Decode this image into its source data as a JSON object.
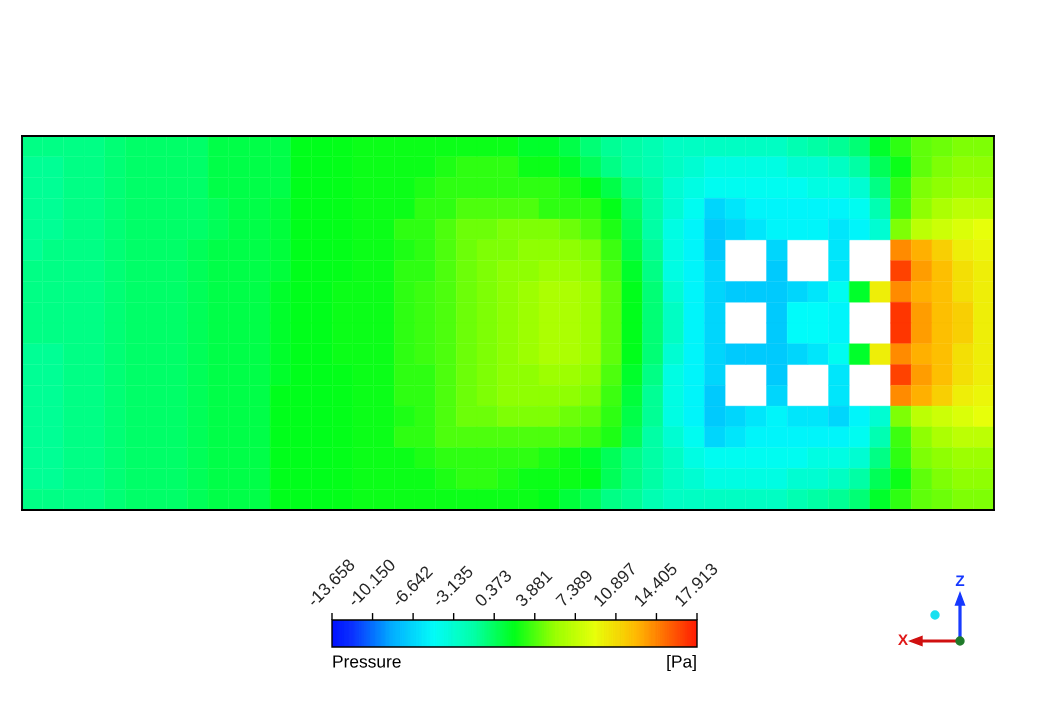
{
  "chart_data": {
    "type": "heatmap",
    "categories": [
      null,
      null,
      null,
      null,
      null,
      null,
      null,
      null,
      null,
      null,
      null,
      null,
      null,
      null,
      null,
      null,
      null,
      null,
      null,
      null,
      null,
      null,
      null,
      null,
      null,
      null,
      null,
      null,
      null,
      null,
      null,
      null,
      null,
      null,
      null,
      null,
      null,
      null,
      null,
      null,
      null,
      null,
      null,
      null,
      null,
      null,
      null
    ],
    "y_categories": [
      null,
      null,
      null,
      null,
      null,
      null,
      null,
      null,
      null,
      null,
      null,
      null,
      null,
      null,
      null,
      null,
      null,
      null
    ],
    "cells": [
      [
        -0.5,
        -0.5,
        -0.5,
        -0.5,
        -0.1,
        0.2,
        0.2,
        0.2,
        0.2,
        1.0,
        1.0,
        1.0,
        1.0,
        2.1,
        2.1,
        2.2,
        2.4,
        2.4,
        2.4,
        2.4,
        2.4,
        2.4,
        2.4,
        2.4,
        1.7,
        1.7,
        1.0,
        -0.1,
        -0.9,
        -1.3,
        -1.8,
        -2.5,
        -2.5,
        -2.5,
        -2.5,
        -2.5,
        -2.5,
        -1.8,
        -1.3,
        -0.9,
        -0.1,
        1.7,
        3.2,
        4.3,
        4.6,
        5.0,
        5.0
      ],
      [
        -0.9,
        -0.9,
        -0.5,
        -0.5,
        -0.1,
        0.2,
        0.2,
        0.2,
        0.2,
        1.0,
        1.0,
        1.0,
        1.0,
        2.1,
        2.1,
        2.2,
        2.4,
        2.4,
        2.4,
        2.4,
        2.8,
        3.2,
        3.2,
        3.2,
        2.4,
        2.4,
        1.7,
        0.6,
        -0.5,
        -1.3,
        -1.8,
        -2.5,
        -3.2,
        -3.9,
        -3.9,
        -3.9,
        -3.9,
        -3.2,
        -3.2,
        -2.5,
        -1.3,
        0.6,
        2.4,
        4.3,
        5.0,
        5.4,
        5.4
      ],
      [
        -0.9,
        -0.9,
        -0.5,
        -0.5,
        -0.1,
        0.2,
        0.2,
        0.2,
        0.2,
        1.0,
        1.0,
        1.0,
        1.0,
        2.1,
        2.1,
        2.2,
        2.4,
        2.4,
        2.4,
        2.8,
        3.2,
        3.2,
        3.2,
        3.2,
        3.2,
        3.2,
        2.8,
        2.2,
        1.0,
        -0.5,
        -1.3,
        -3.2,
        -3.9,
        -4.5,
        -4.5,
        -4.5,
        -4.5,
        -4.5,
        -3.9,
        -3.9,
        -3.2,
        -0.5,
        3.2,
        5.0,
        5.4,
        5.8,
        5.8
      ],
      [
        -0.9,
        -0.9,
        -0.5,
        -0.5,
        -0.1,
        0.2,
        0.2,
        0.2,
        0.2,
        0.6,
        1.0,
        1.0,
        1.3,
        2.1,
        2.1,
        2.2,
        2.4,
        2.4,
        2.4,
        3.2,
        3.2,
        3.9,
        3.9,
        3.9,
        3.9,
        3.2,
        3.2,
        3.2,
        2.2,
        0.2,
        -1.3,
        -3.2,
        -4.5,
        -6.6,
        -5.9,
        -5.2,
        -5.2,
        -5.2,
        -5.2,
        -5.2,
        -4.5,
        -1.8,
        3.5,
        5.4,
        6.5,
        7.2,
        7.2
      ],
      [
        -0.9,
        -0.9,
        -0.5,
        -0.5,
        -0.1,
        0.2,
        0.2,
        0.2,
        0.2,
        0.6,
        1.0,
        1.0,
        1.3,
        2.1,
        2.1,
        2.2,
        2.4,
        2.4,
        3.2,
        3.2,
        3.9,
        4.6,
        4.6,
        5.0,
        5.0,
        5.0,
        4.6,
        3.9,
        2.8,
        0.6,
        -1.3,
        -3.9,
        -5.2,
        -7.2,
        -6.6,
        -5.9,
        -5.2,
        -5.2,
        -5.2,
        -5.9,
        -5.2,
        -3.2,
        5.0,
        7.2,
        7.9,
        8.5,
        9.1
      ],
      [
        -0.9,
        -0.5,
        -0.5,
        -0.5,
        -0.1,
        0.2,
        0.2,
        0.2,
        0.6,
        1.0,
        1.0,
        1.0,
        1.3,
        2.1,
        2.1,
        2.2,
        2.4,
        2.4,
        2.8,
        3.2,
        3.9,
        4.6,
        5.0,
        5.0,
        5.4,
        5.4,
        5.4,
        5.0,
        3.5,
        1.0,
        -0.9,
        -3.9,
        -5.2,
        -7.2,
        null,
        null,
        -6.6,
        null,
        null,
        -5.9,
        null,
        null,
        14.2,
        13.0,
        11.6,
        10.0,
        9.6
      ],
      [
        -0.5,
        -0.5,
        -0.5,
        -0.5,
        -0.1,
        0.2,
        0.2,
        0.2,
        0.6,
        1.0,
        1.0,
        1.0,
        1.3,
        2.1,
        2.1,
        2.2,
        2.4,
        2.4,
        3.2,
        3.2,
        3.9,
        4.6,
        5.0,
        5.4,
        5.4,
        5.8,
        5.8,
        5.4,
        3.9,
        1.7,
        -0.5,
        -3.9,
        -5.2,
        -6.6,
        null,
        null,
        -7.2,
        null,
        null,
        -5.9,
        null,
        null,
        16.6,
        13.6,
        12.4,
        10.8,
        10.0
      ],
      [
        -0.5,
        -0.5,
        -0.5,
        -0.5,
        -0.1,
        0.2,
        0.2,
        0.2,
        0.6,
        1.0,
        1.0,
        1.0,
        1.7,
        2.1,
        2.1,
        2.4,
        2.4,
        2.4,
        3.2,
        3.5,
        3.9,
        4.6,
        5.0,
        5.4,
        5.8,
        6.5,
        6.5,
        5.8,
        4.3,
        2.1,
        -0.1,
        -3.2,
        -5.2,
        -6.6,
        -7.2,
        -7.2,
        -7.2,
        -6.6,
        -5.9,
        -4.5,
        1.7,
        10.0,
        14.2,
        13.0,
        12.4,
        10.8,
        10.0
      ],
      [
        -0.5,
        -0.5,
        -0.5,
        -0.5,
        -0.1,
        0.2,
        0.2,
        0.2,
        0.6,
        1.0,
        1.0,
        1.0,
        1.7,
        2.1,
        2.1,
        2.4,
        2.4,
        2.4,
        3.2,
        3.5,
        3.9,
        4.6,
        5.0,
        5.4,
        5.8,
        6.5,
        6.5,
        5.8,
        4.3,
        2.1,
        -0.1,
        -2.5,
        -5.2,
        -6.6,
        null,
        null,
        -7.2,
        -4.9,
        -4.9,
        -5.2,
        null,
        null,
        17.0,
        13.6,
        12.4,
        11.6,
        10.0
      ],
      [
        -0.5,
        -0.5,
        -0.5,
        -0.5,
        -0.1,
        0.2,
        0.2,
        0.2,
        0.6,
        1.0,
        1.0,
        1.0,
        1.7,
        2.1,
        2.1,
        2.4,
        2.4,
        2.4,
        3.2,
        3.5,
        3.9,
        4.6,
        5.0,
        5.4,
        5.8,
        6.5,
        6.5,
        5.8,
        4.3,
        2.1,
        -0.1,
        -2.5,
        -5.2,
        -6.6,
        null,
        null,
        -7.2,
        -4.9,
        -4.9,
        -5.2,
        null,
        null,
        17.0,
        13.6,
        12.4,
        11.6,
        10.0
      ],
      [
        -0.9,
        -0.9,
        -0.5,
        -0.5,
        -0.1,
        0.2,
        0.2,
        0.2,
        0.6,
        1.0,
        1.0,
        1.0,
        1.7,
        2.1,
        2.1,
        2.4,
        2.4,
        2.4,
        3.2,
        3.5,
        3.9,
        4.6,
        5.0,
        5.4,
        5.8,
        6.5,
        6.5,
        5.8,
        4.3,
        2.1,
        -0.1,
        -3.2,
        -5.2,
        -6.6,
        -7.2,
        -7.2,
        -7.2,
        -6.6,
        -5.9,
        -4.5,
        1.7,
        10.0,
        14.2,
        13.0,
        12.4,
        10.8,
        10.0
      ],
      [
        -0.9,
        -0.9,
        -0.5,
        -0.5,
        -0.1,
        0.2,
        0.2,
        0.2,
        0.6,
        1.0,
        1.0,
        1.0,
        1.7,
        2.1,
        2.1,
        2.2,
        2.4,
        2.4,
        3.2,
        3.2,
        3.9,
        4.6,
        5.0,
        5.4,
        5.4,
        5.8,
        5.8,
        5.4,
        3.9,
        1.7,
        -0.5,
        -3.9,
        -5.2,
        -6.6,
        null,
        null,
        -7.2,
        null,
        null,
        -5.9,
        null,
        null,
        16.6,
        13.6,
        12.4,
        10.8,
        10.0
      ],
      [
        -0.9,
        -0.9,
        -0.5,
        -0.5,
        -0.1,
        0.2,
        0.2,
        0.2,
        0.6,
        1.0,
        1.0,
        1.0,
        2.1,
        2.1,
        2.1,
        2.2,
        2.4,
        2.4,
        3.2,
        3.2,
        3.9,
        4.6,
        5.0,
        5.4,
        5.4,
        5.4,
        5.4,
        5.0,
        3.5,
        1.3,
        -0.9,
        -3.9,
        -5.2,
        -7.2,
        null,
        null,
        -6.6,
        null,
        null,
        -5.9,
        null,
        null,
        14.2,
        13.0,
        11.6,
        10.0,
        9.6
      ],
      [
        -0.9,
        -0.9,
        -0.5,
        -0.5,
        -0.1,
        0.2,
        0.2,
        0.2,
        0.6,
        1.0,
        1.0,
        1.0,
        2.1,
        2.1,
        2.1,
        2.2,
        2.4,
        2.4,
        2.8,
        3.2,
        3.9,
        4.6,
        4.6,
        5.0,
        5.0,
        5.0,
        4.6,
        4.3,
        3.2,
        1.0,
        -0.9,
        -3.9,
        -5.2,
        -7.2,
        -6.6,
        -5.9,
        -5.2,
        -5.9,
        -5.9,
        -6.6,
        -5.2,
        -3.2,
        5.0,
        7.2,
        7.9,
        8.5,
        9.1
      ],
      [
        -0.9,
        -0.9,
        -0.5,
        -0.5,
        -0.1,
        0.2,
        0.2,
        0.2,
        0.6,
        1.0,
        1.0,
        1.0,
        2.1,
        2.1,
        2.1,
        2.2,
        2.4,
        2.4,
        3.2,
        3.2,
        3.9,
        3.9,
        3.9,
        3.9,
        3.9,
        3.9,
        3.9,
        3.5,
        2.8,
        0.6,
        -1.3,
        -3.2,
        -4.5,
        -6.6,
        -5.9,
        -5.2,
        -5.2,
        -5.2,
        -5.2,
        -5.2,
        -4.5,
        -1.8,
        3.5,
        5.4,
        6.5,
        7.2,
        7.2
      ],
      [
        -0.9,
        -0.9,
        -0.5,
        -0.5,
        -0.1,
        0.2,
        0.2,
        0.2,
        0.6,
        1.0,
        1.0,
        1.0,
        2.1,
        2.1,
        2.1,
        2.2,
        2.4,
        2.4,
        2.4,
        2.8,
        3.2,
        3.2,
        3.2,
        3.2,
        3.2,
        2.8,
        2.4,
        1.7,
        0.6,
        -0.5,
        -1.3,
        -2.5,
        -3.9,
        -4.5,
        -4.5,
        -4.5,
        -4.5,
        -4.5,
        -3.9,
        -3.9,
        -3.2,
        -0.5,
        3.2,
        5.0,
        5.4,
        5.8,
        5.8
      ],
      [
        -0.9,
        -0.9,
        -0.5,
        -0.5,
        -0.1,
        0.2,
        0.2,
        0.2,
        0.6,
        1.0,
        1.0,
        1.0,
        2.1,
        2.1,
        2.1,
        2.2,
        2.4,
        2.4,
        2.4,
        2.4,
        2.8,
        3.2,
        3.2,
        2.8,
        2.4,
        2.4,
        2.4,
        2.1,
        0.6,
        -0.5,
        -1.3,
        -2.5,
        -3.2,
        -3.9,
        -3.9,
        -3.9,
        -3.9,
        -3.2,
        -3.2,
        -2.5,
        -1.3,
        0.6,
        2.4,
        4.3,
        5.0,
        5.4,
        5.4
      ],
      [
        -0.5,
        -0.5,
        -0.5,
        -0.5,
        -0.1,
        0.2,
        0.2,
        0.2,
        0.6,
        1.0,
        1.0,
        1.0,
        2.1,
        2.1,
        2.1,
        2.2,
        2.4,
        2.4,
        2.4,
        2.4,
        2.4,
        2.4,
        2.4,
        2.4,
        2.4,
        2.1,
        1.3,
        0.6,
        -0.5,
        -0.9,
        -1.8,
        -2.5,
        -2.5,
        -2.5,
        -2.5,
        -2.5,
        -2.5,
        -1.8,
        -1.3,
        -0.9,
        -0.1,
        1.7,
        3.2,
        4.3,
        4.6,
        5.0,
        5.0
      ]
    ],
    "clim": [
      -13.658,
      17.913
    ],
    "cticks": [
      -13.658,
      {
        "value": -10.15,
        "label": "-10.150"
      },
      -6.642,
      -3.135,
      0.373,
      3.881,
      7.389,
      10.897,
      14.405,
      17.913
    ],
    "clabel": "Pressure",
    "annotations": [
      "[Pa]",
      "Z",
      "X"
    ]
  }
}
